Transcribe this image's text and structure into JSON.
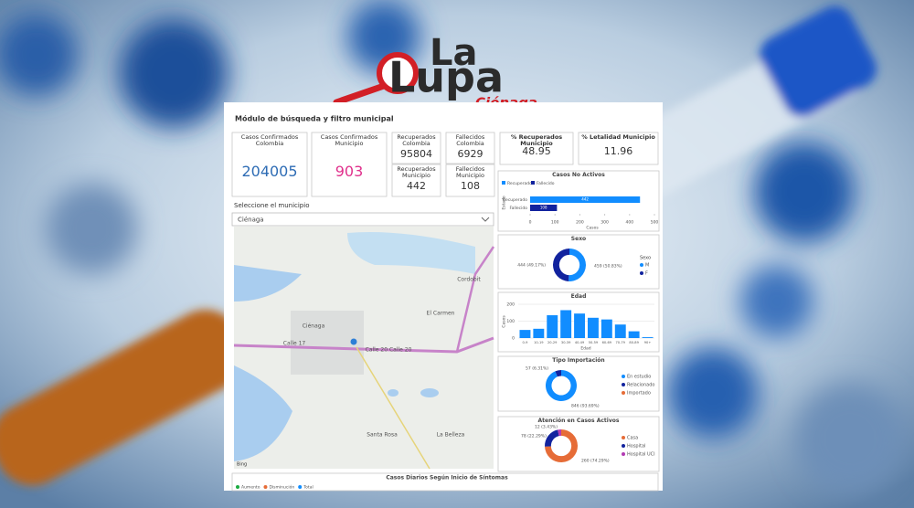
{
  "logo": {
    "line1": "La",
    "line2": "Lupa",
    "line3": "Ciénaga"
  },
  "dashboard": {
    "title": "Módulo de búsqueda y filtro municipal",
    "kpis": [
      {
        "label": "Casos Confirmados Colombia",
        "value": 204005,
        "color": "#2f6db5"
      },
      {
        "label": "Casos Confirmados Municipio",
        "value": 903,
        "color": "#e0318c"
      },
      {
        "label": "Recuperados Colombia",
        "value": 95804
      },
      {
        "label": "Fallecidos Colombia",
        "value": 6929
      },
      {
        "label": "Recuperados Municipio",
        "value": 442
      },
      {
        "label": "Fallecidos Municipio",
        "value": 108
      },
      {
        "label": "% Recuperados Municipio",
        "value": 48.95
      },
      {
        "label": "% Letalidad Municipio",
        "value": 11.96
      }
    ],
    "selector": {
      "label": "Seleccione el municipio",
      "value": "Ciénaga"
    },
    "map": {
      "labels": [
        "Ciénaga",
        "El Carmen",
        "Cordobit",
        "Santa Rosa",
        "La Belleza",
        "Calle 17",
        "Calle 20 Calle 20"
      ],
      "attribution": "Bing"
    },
    "charts": [
      {
        "type": "hbar",
        "title": "Casos No Activos",
        "categories": [
          "Recuperado",
          "Fallecido"
        ],
        "values": [
          442,
          108
        ],
        "colors": [
          "#118dff",
          "#12239e"
        ],
        "xlim": [
          0,
          500
        ],
        "xticks": [
          0,
          100,
          200,
          300,
          400,
          500
        ],
        "x_label": "Casos",
        "y_label": "Estado"
      },
      {
        "type": "donut",
        "title": "Sexo",
        "legend_title": "Sexo",
        "categories": [
          "M",
          "F"
        ],
        "values": [
          459,
          444
        ],
        "value_labels": [
          "459 (50.83%)",
          "444 (49.17%)"
        ],
        "colors": [
          "#118dff",
          "#12239e"
        ]
      },
      {
        "type": "bar",
        "title": "Edad",
        "categories": [
          "0-9",
          "10-19",
          "20-29",
          "30-39",
          "40-49",
          "50-59",
          "60-69",
          "70-79",
          "80-89",
          "90+"
        ],
        "values": [
          48,
          55,
          135,
          165,
          145,
          120,
          110,
          80,
          40,
          5
        ],
        "color": "#118dff",
        "ylim": [
          0,
          200
        ],
        "yticks": [
          0,
          100,
          200
        ],
        "x_label": "Edad",
        "y_label": "Casos"
      },
      {
        "type": "donut",
        "title": "Tipo Importación",
        "categories": [
          "En estudio",
          "Relacionado",
          "Importado"
        ],
        "values": [
          846,
          57,
          null
        ],
        "value_labels": [
          "846 (93.69%)",
          "57 (6.31%)",
          null
        ],
        "colors": [
          "#118dff",
          "#12239e",
          "#e66c37"
        ]
      },
      {
        "type": "donut",
        "title": "Atención en Casos Activos",
        "categories": [
          "Casa",
          "Hospital",
          "Hospital UCI"
        ],
        "values": [
          260,
          78,
          12
        ],
        "value_labels": [
          "260 (74.29%)",
          "78 (22.29%)",
          "12 (3.43%)"
        ],
        "colors": [
          "#e66c37",
          "#12239e",
          "#b23bb3"
        ]
      }
    ],
    "bottom": {
      "title": "Casos Diarios Según Inicio de Síntomas",
      "legend": [
        {
          "name": "Aumento",
          "color": "#1aab40"
        },
        {
          "name": "Disminución",
          "color": "#e66c37"
        },
        {
          "name": "Total",
          "color": "#118dff"
        }
      ]
    }
  }
}
